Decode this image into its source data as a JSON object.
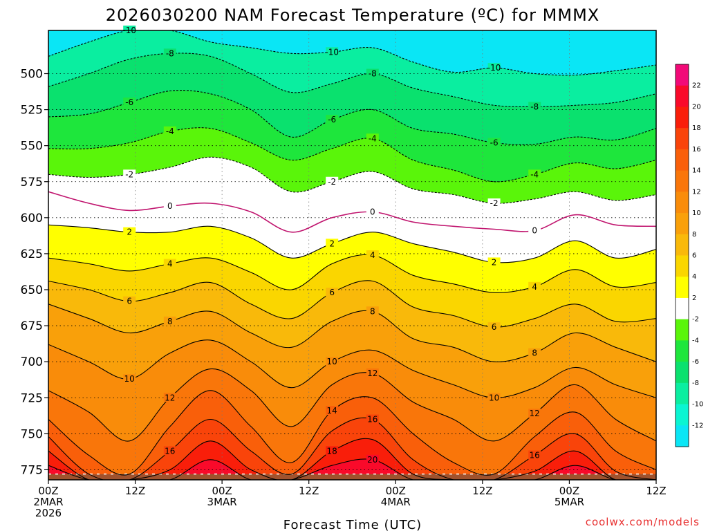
{
  "header": {
    "title": "2026030200 NAM Forecast Temperature (ºC) for MMMX",
    "credit": "coolwx.com/models"
  },
  "chart_data": {
    "type": "contour",
    "title": "2026030200 NAM Forecast Temperature (ºC) for MMMX",
    "xlabel": "Forecast Time (UTC)",
    "ylabel": "",
    "x_range_hours": [
      0,
      84
    ],
    "y_range_hpa": [
      470,
      782
    ],
    "y_reversed": true,
    "grid": true,
    "yticks": [
      500,
      525,
      550,
      575,
      600,
      625,
      650,
      675,
      700,
      725,
      750,
      775
    ],
    "xticks": [
      {
        "hour": 0,
        "lines": [
          "00Z",
          "2MAR",
          "2026"
        ]
      },
      {
        "hour": 12,
        "lines": [
          "12Z"
        ]
      },
      {
        "hour": 24,
        "lines": [
          "00Z",
          "3MAR"
        ]
      },
      {
        "hour": 36,
        "lines": [
          "12Z"
        ]
      },
      {
        "hour": 48,
        "lines": [
          "00Z",
          "4MAR"
        ]
      },
      {
        "hour": 60,
        "lines": [
          "12Z"
        ]
      },
      {
        "hour": 72,
        "lines": [
          "00Z",
          "5MAR"
        ]
      },
      {
        "hour": 84,
        "lines": [
          "12Z"
        ]
      }
    ],
    "surface_pressure_hpa": 778,
    "colorbar": {
      "ticks": [
        "22",
        "20",
        "18",
        "16",
        "14",
        "12",
        "10",
        "8",
        "6",
        "4",
        "2",
        "-2",
        "-4",
        "-6",
        "-8",
        "-10",
        "-12"
      ],
      "bands": [
        {
          "min": 22,
          "color": "#f20a78"
        },
        {
          "min": 20,
          "color": "#f90a2a"
        },
        {
          "min": 18,
          "color": "#f91e0a"
        },
        {
          "min": 16,
          "color": "#f9440a"
        },
        {
          "min": 14,
          "color": "#f95f0a"
        },
        {
          "min": 12,
          "color": "#f9760a"
        },
        {
          "min": 10,
          "color": "#f98c0a"
        },
        {
          "min": 8,
          "color": "#f9a00a"
        },
        {
          "min": 6,
          "color": "#f9b90a"
        },
        {
          "min": 4,
          "color": "#fad600"
        },
        {
          "min": 2,
          "color": "#ffff00"
        },
        {
          "min": -2,
          "color": "#ffffff"
        },
        {
          "min": -4,
          "color": "#5af50a"
        },
        {
          "min": -6,
          "color": "#1ee63c"
        },
        {
          "min": -8,
          "color": "#0ae16e"
        },
        {
          "min": -10,
          "color": "#0aeea0"
        },
        {
          "min": -12,
          "color": "#0af5d2"
        },
        {
          "min": -99,
          "color": "#0ae6f5"
        }
      ]
    },
    "contour_levels": [
      {
        "value": -10,
        "label": "-10",
        "heights": [
          488,
          478,
          470,
          470,
          478,
          482,
          486,
          485,
          482,
          492,
          499,
          496,
          500,
          501,
          498,
          494
        ]
      },
      {
        "value": -8,
        "label": "-8",
        "heights": [
          509,
          500,
          490,
          486,
          488,
          500,
          513,
          507,
          500,
          510,
          516,
          522,
          523,
          522,
          520,
          514
        ]
      },
      {
        "value": -6,
        "label": "-6",
        "heights": [
          530,
          528,
          520,
          512,
          514,
          525,
          544,
          532,
          525,
          538,
          542,
          548,
          549,
          544,
          546,
          538
        ]
      },
      {
        "value": -4,
        "label": "-4",
        "heights": [
          552,
          552,
          548,
          540,
          538,
          548,
          560,
          552,
          545,
          560,
          567,
          575,
          570,
          562,
          566,
          560
        ]
      },
      {
        "value": -2,
        "label": "-2",
        "heights": [
          570,
          572,
          570,
          565,
          558,
          565,
          582,
          575,
          568,
          580,
          584,
          590,
          587,
          582,
          588,
          584
        ]
      },
      {
        "value": 0,
        "label": "0",
        "heights": [
          582,
          590,
          595,
          592,
          590,
          596,
          610,
          600,
          596,
          603,
          606,
          608,
          609,
          598,
          605,
          606
        ]
      },
      {
        "value": 2,
        "label": "2",
        "heights": [
          605,
          607,
          610,
          610,
          606,
          614,
          628,
          618,
          610,
          618,
          624,
          631,
          628,
          616,
          628,
          622
        ]
      },
      {
        "value": 4,
        "label": "4",
        "heights": [
          628,
          632,
          637,
          632,
          628,
          638,
          650,
          632,
          626,
          640,
          646,
          652,
          648,
          636,
          648,
          645
        ]
      },
      {
        "value": 6,
        "label": "6",
        "heights": [
          644,
          650,
          658,
          652,
          645,
          660,
          670,
          652,
          644,
          662,
          668,
          676,
          670,
          660,
          672,
          670
        ]
      },
      {
        "value": 8,
        "label": "8",
        "heights": [
          660,
          670,
          680,
          672,
          665,
          680,
          690,
          672,
          665,
          684,
          690,
          700,
          694,
          680,
          690,
          700
        ]
      },
      {
        "value": 10,
        "label": "10",
        "heights": [
          688,
          700,
          712,
          694,
          685,
          700,
          718,
          700,
          692,
          706,
          716,
          725,
          718,
          704,
          716,
          725
        ]
      },
      {
        "value": 12,
        "label": "12",
        "heights": [
          720,
          735,
          755,
          725,
          705,
          720,
          745,
          716,
          708,
          728,
          740,
          755,
          736,
          716,
          740,
          755
        ]
      },
      {
        "value": 14,
        "label": "14",
        "heights": [
          740,
          765,
          778,
          745,
          720,
          745,
          770,
          734,
          725,
          750,
          770,
          778,
          752,
          735,
          762,
          775
        ]
      },
      {
        "value": 16,
        "label": "16",
        "heights": [
          752,
          778,
          782,
          762,
          740,
          762,
          778,
          748,
          740,
          768,
          782,
          782,
          765,
          750,
          776,
          782
        ]
      },
      {
        "value": 18,
        "label": "18",
        "heights": [
          762,
          782,
          782,
          775,
          755,
          775,
          782,
          762,
          754,
          778,
          782,
          782,
          776,
          762,
          782,
          782
        ]
      },
      {
        "value": 20,
        "label": "20",
        "heights": [
          772,
          782,
          782,
          782,
          768,
          782,
          782,
          772,
          768,
          782,
          782,
          782,
          782,
          772,
          782,
          782
        ]
      }
    ]
  }
}
